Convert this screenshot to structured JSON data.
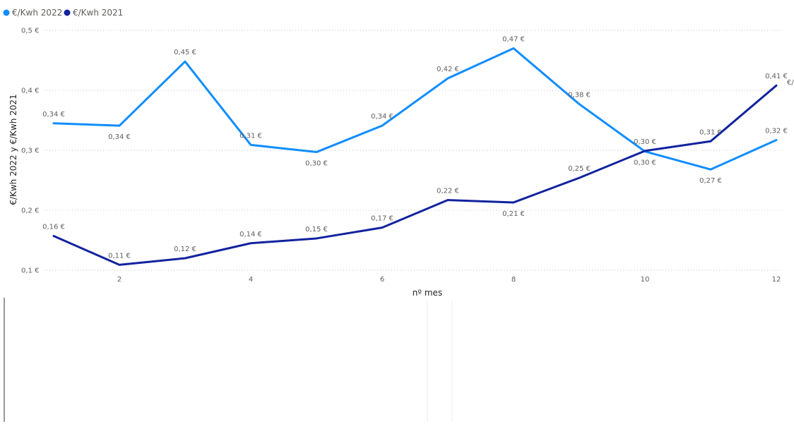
{
  "chart_data": {
    "type": "line",
    "xlabel": "nº mes",
    "ylabel": "€/Kwh 2022 y €/Kwh 2021",
    "x": [
      1,
      2,
      3,
      4,
      5,
      6,
      7,
      8,
      9,
      10,
      11,
      12
    ],
    "xlim": [
      1,
      12
    ],
    "ylim": [
      0.1,
      0.5
    ],
    "x_ticks": [
      {
        "value": 2,
        "label": "2"
      },
      {
        "value": 4,
        "label": "4"
      },
      {
        "value": 6,
        "label": "6"
      },
      {
        "value": 8,
        "label": "8"
      },
      {
        "value": 10,
        "label": "10"
      },
      {
        "value": 12,
        "label": "12"
      }
    ],
    "y_ticks": [
      {
        "value": 0.1,
        "label": "0,1 €"
      },
      {
        "value": 0.2,
        "label": "0,2 €"
      },
      {
        "value": 0.3,
        "label": "0,3 €"
      },
      {
        "value": 0.4,
        "label": "0,4 €"
      },
      {
        "value": 0.5,
        "label": "0,5 €"
      }
    ],
    "grid": true,
    "legend_position": "top-left",
    "series": [
      {
        "name": "€/Kwh 2022",
        "color": "#118dff",
        "values": [
          0.345,
          0.341,
          0.448,
          0.309,
          0.297,
          0.341,
          0.42,
          0.47,
          0.377,
          0.298,
          0.268,
          0.317
        ],
        "labels": [
          "0,34 €",
          "0,34 €",
          "0,45 €",
          "0,31 €",
          "0,30 €",
          "0,34 €",
          "0,42 €",
          "0,47 €",
          "0,38 €",
          "0,30 €",
          "0,27 €",
          "0,32 €"
        ],
        "label_positions": [
          "above",
          "below",
          "above",
          "above",
          "below",
          "above",
          "above",
          "above",
          "above",
          "below",
          "below",
          "above"
        ]
      },
      {
        "name": "€/Kwh 2021",
        "color": "#12239e",
        "values": [
          0.157,
          0.109,
          0.12,
          0.145,
          0.153,
          0.171,
          0.217,
          0.213,
          0.254,
          0.299,
          0.315,
          0.408
        ],
        "labels": [
          "0,16 €",
          "0,11 €",
          "0,12 €",
          "0,14 €",
          "0,15 €",
          "0,17 €",
          "0,22 €",
          "0,21 €",
          "0,25 €",
          "0,30 €",
          "0,31 €",
          "0,41 €"
        ],
        "label_positions": [
          "above",
          "above",
          "above",
          "above",
          "above",
          "above",
          "above",
          "below",
          "above",
          "above",
          "above",
          "above"
        ]
      }
    ],
    "cut_label": "€/"
  }
}
